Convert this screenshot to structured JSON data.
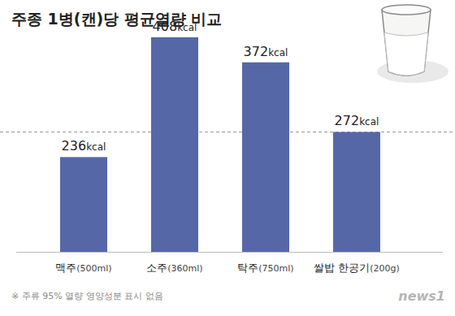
{
  "chart_data": {
    "type": "bar",
    "title": "주종 1병(캔)당 평균열량 비교",
    "categories": [
      "맥주(500ml)",
      "소주(360ml)",
      "탁주(750ml)",
      "쌀밥 한공기(200g)"
    ],
    "values": [
      236,
      408,
      372,
      272
    ],
    "value_labels": [
      "236kcal",
      "408kcal",
      "372kcal",
      "272kcal"
    ],
    "data_labels": true,
    "color": "#5667a8",
    "ylim": [
      100,
      430
    ],
    "tick_labels": "x",
    "grid": false,
    "reference_line": 272,
    "footnote": "※ 주류 95% 열량 영양성분 표시 없음",
    "source": "news1"
  }
}
